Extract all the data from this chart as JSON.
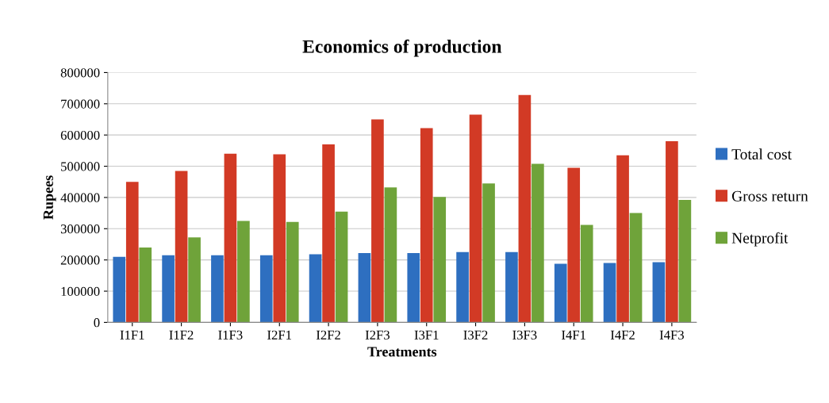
{
  "chart_data": {
    "type": "bar",
    "title": "Economics of production",
    "xlabel": "Treatments",
    "ylabel": "Rupees",
    "categories": [
      "I1F1",
      "I1F2",
      "I1F3",
      "I2F1",
      "I2F2",
      "I2F3",
      "I3F1",
      "I3F2",
      "I3F3",
      "I4F1",
      "I4F2",
      "I4F3"
    ],
    "series": [
      {
        "name": "Total cost",
        "color": "#2e6fc0",
        "values": [
          210000,
          215000,
          215000,
          215000,
          218000,
          222000,
          222000,
          225000,
          225000,
          188000,
          190000,
          193000
        ]
      },
      {
        "name": "Gross return",
        "color": "#d23a25",
        "values": [
          450000,
          485000,
          540000,
          538000,
          570000,
          650000,
          622000,
          665000,
          728000,
          495000,
          535000,
          580000
        ]
      },
      {
        "name": "Netprofit",
        "color": "#6fa33a",
        "values": [
          240000,
          272000,
          325000,
          322000,
          355000,
          432000,
          402000,
          445000,
          508000,
          312000,
          350000,
          392000
        ]
      }
    ],
    "ylim": [
      0,
      800000
    ],
    "yticks": [
      0,
      100000,
      200000,
      300000,
      400000,
      500000,
      600000,
      700000,
      800000
    ],
    "grid": "y",
    "legend": "right"
  }
}
